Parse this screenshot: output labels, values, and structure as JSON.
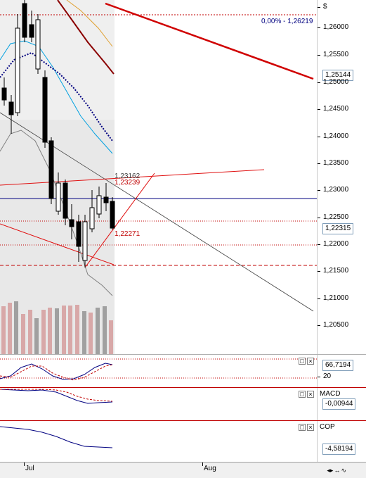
{
  "main": {
    "currency_symbol": "$",
    "fib_label": "0,00% - 1,26219",
    "price_ticks": [
      "1,26000",
      "1,25500",
      "1,25000",
      "1,24500",
      "1,24000",
      "1,23500",
      "1,23000",
      "1,22500",
      "1,22000",
      "1,21500",
      "1,21000",
      "1,20500"
    ],
    "last_price_badge": "1,25144",
    "current_price_badge": "1,22315",
    "annotations": [
      "1,23162",
      "1,23239",
      "1,22271"
    ]
  },
  "oscillator": {
    "value_badge": "66,7194",
    "level_label": "20"
  },
  "macd": {
    "title": "MACD",
    "value_badge": "-0,00944"
  },
  "cop": {
    "title": "COP",
    "value_badge": "-4,58194"
  },
  "x_axis": {
    "labels": [
      "Jul",
      "Aug"
    ]
  },
  "colors": {
    "bull": "#ffffff",
    "bear": "#000000",
    "volume": "#d8a8a8",
    "volume_dark": "#a0a0a0",
    "channel": "#e01010",
    "trend": "#c00000",
    "ma_blue": "#00a0e0",
    "ma_dark": "#000080",
    "pane_border": "#c00000"
  }
}
